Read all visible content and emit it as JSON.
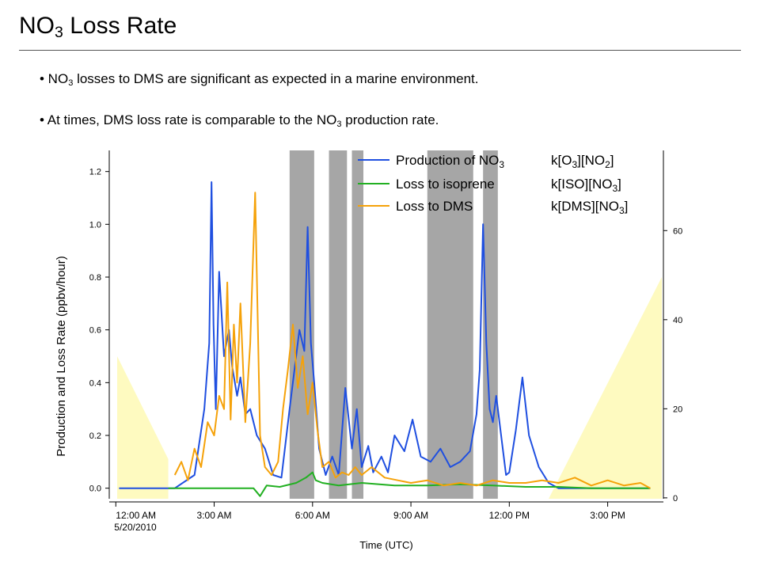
{
  "slide": {
    "title_main": "NO",
    "title_sub": "3",
    "title_rest": " Loss Rate",
    "bullets": [
      {
        "pre": "• NO",
        "sub": "3",
        "post": " losses to DMS are significant as expected in a marine environment."
      },
      {
        "pre": "• At times, DMS loss rate is comparable to the NO",
        "sub": "3",
        "post": " production rate."
      }
    ]
  },
  "chart_data": {
    "type": "line",
    "xlabel": "Time (UTC)",
    "ylabel": "Production and Loss Rate (ppbv/hour)",
    "x_unit": "hours after 12:00 AM 5/20/2010",
    "xlim": [
      -0.2,
      16.7
    ],
    "ylim": [
      -0.04,
      1.28
    ],
    "y2lim": [
      -0.2,
      78
    ],
    "x_ticks": [
      0,
      3,
      6,
      9,
      12,
      15
    ],
    "x_tick_labels": [
      "12:00 AM",
      "3:00 AM",
      "6:00 AM",
      "9:00 AM",
      "12:00 PM",
      "3:00 PM"
    ],
    "x_first_tick_sublabel": "5/20/2010",
    "y_ticks": [
      0.0,
      0.2,
      0.4,
      0.6,
      0.8,
      1.0,
      1.2
    ],
    "y_tick_labels": [
      "0.0",
      "0.2",
      "0.4",
      "0.6",
      "0.8",
      "1.0",
      "1.2"
    ],
    "y2_ticks": [
      0,
      20,
      40,
      60
    ],
    "y2_tick_labels": [
      "0",
      "20",
      "40",
      "60"
    ],
    "gray_bands": [
      [
        5.3,
        6.05
      ],
      [
        6.5,
        7.05
      ],
      [
        7.2,
        7.55
      ],
      [
        9.5,
        10.9
      ],
      [
        11.2,
        11.65
      ]
    ],
    "gray_band_color": "#a6a6a6",
    "yellow_shading_color": "#fefac0",
    "legend": [
      {
        "label": "Production of NO",
        "label_sub": "3",
        "formula": "k[O3][NO2]"
      },
      {
        "label": "Loss to isoprene",
        "formula": "k[ISO][NO3]"
      },
      {
        "label": "Loss to DMS",
        "formula": "k[DMS][NO3]"
      }
    ],
    "series": [
      {
        "name": "Production of NO3",
        "color": "#1f4fe0",
        "x": [
          0.1,
          1.0,
          1.8,
          2.4,
          2.7,
          2.85,
          2.92,
          2.98,
          3.05,
          3.15,
          3.3,
          3.45,
          3.55,
          3.7,
          3.8,
          3.95,
          4.1,
          4.3,
          4.55,
          4.8,
          5.05,
          5.3,
          5.45,
          5.6,
          5.75,
          5.85,
          5.95,
          6.05,
          6.2,
          6.4,
          6.6,
          6.8,
          7.0,
          7.2,
          7.35,
          7.5,
          7.7,
          7.85,
          8.1,
          8.3,
          8.5,
          8.8,
          9.05,
          9.3,
          9.6,
          9.9,
          10.2,
          10.5,
          10.8,
          11.0,
          11.1,
          11.2,
          11.3,
          11.4,
          11.5,
          11.6,
          11.75,
          11.9,
          12.0,
          12.2,
          12.4,
          12.6,
          12.9,
          13.2,
          13.5,
          13.8,
          14.1,
          14.5,
          15.0,
          15.5,
          16.0,
          16.3
        ],
        "y": [
          0.0,
          0.0,
          0.0,
          0.05,
          0.3,
          0.55,
          1.16,
          0.62,
          0.3,
          0.82,
          0.5,
          0.6,
          0.46,
          0.35,
          0.42,
          0.28,
          0.3,
          0.2,
          0.15,
          0.05,
          0.04,
          0.3,
          0.45,
          0.6,
          0.52,
          0.99,
          0.55,
          0.4,
          0.15,
          0.05,
          0.12,
          0.05,
          0.38,
          0.15,
          0.3,
          0.08,
          0.16,
          0.06,
          0.12,
          0.06,
          0.2,
          0.14,
          0.26,
          0.12,
          0.1,
          0.15,
          0.08,
          0.1,
          0.14,
          0.28,
          0.45,
          1.0,
          0.55,
          0.3,
          0.25,
          0.35,
          0.2,
          0.05,
          0.06,
          0.22,
          0.42,
          0.2,
          0.08,
          0.02,
          0.0,
          0.0,
          0.0,
          0.0,
          0.0,
          0.0,
          0.0,
          0.0
        ]
      },
      {
        "name": "Loss to isoprene",
        "color": "#22b022",
        "x": [
          1.6,
          2.5,
          3.5,
          4.2,
          4.4,
          4.6,
          5.0,
          5.5,
          5.8,
          6.0,
          6.1,
          6.3,
          6.8,
          7.5,
          8.5,
          9.5,
          10.5,
          11.5,
          12.5,
          13.5,
          14.5,
          15.5,
          16.3
        ],
        "y": [
          0.0,
          0.0,
          0.0,
          0.0,
          -0.03,
          0.01,
          0.005,
          0.02,
          0.04,
          0.06,
          0.03,
          0.02,
          0.01,
          0.02,
          0.01,
          0.01,
          0.015,
          0.01,
          0.005,
          0.005,
          0.0,
          0.0,
          0.0
        ]
      },
      {
        "name": "Loss to DMS",
        "color": "#f5a20a",
        "x": [
          1.8,
          2.0,
          2.2,
          2.4,
          2.6,
          2.8,
          3.0,
          3.15,
          3.3,
          3.4,
          3.5,
          3.6,
          3.7,
          3.8,
          3.95,
          4.1,
          4.25,
          4.4,
          4.55,
          4.75,
          4.95,
          5.1,
          5.25,
          5.4,
          5.55,
          5.7,
          5.85,
          6.0,
          6.15,
          6.3,
          6.5,
          6.7,
          6.9,
          7.1,
          7.3,
          7.5,
          7.8,
          8.2,
          8.6,
          9.0,
          9.5,
          10.0,
          10.5,
          11.0,
          11.5,
          12.0,
          12.5,
          13.0,
          13.5,
          14.0,
          14.5,
          15.0,
          15.5,
          16.0,
          16.3
        ],
        "y": [
          0.05,
          0.1,
          0.03,
          0.15,
          0.08,
          0.25,
          0.2,
          0.35,
          0.3,
          0.78,
          0.26,
          0.62,
          0.4,
          0.7,
          0.25,
          0.55,
          1.12,
          0.2,
          0.08,
          0.05,
          0.1,
          0.3,
          0.45,
          0.62,
          0.38,
          0.5,
          0.28,
          0.4,
          0.22,
          0.08,
          0.1,
          0.04,
          0.06,
          0.05,
          0.08,
          0.05,
          0.08,
          0.04,
          0.03,
          0.02,
          0.03,
          0.01,
          0.02,
          0.01,
          0.03,
          0.02,
          0.02,
          0.03,
          0.02,
          0.04,
          0.01,
          0.03,
          0.01,
          0.02,
          0.0
        ]
      }
    ]
  }
}
